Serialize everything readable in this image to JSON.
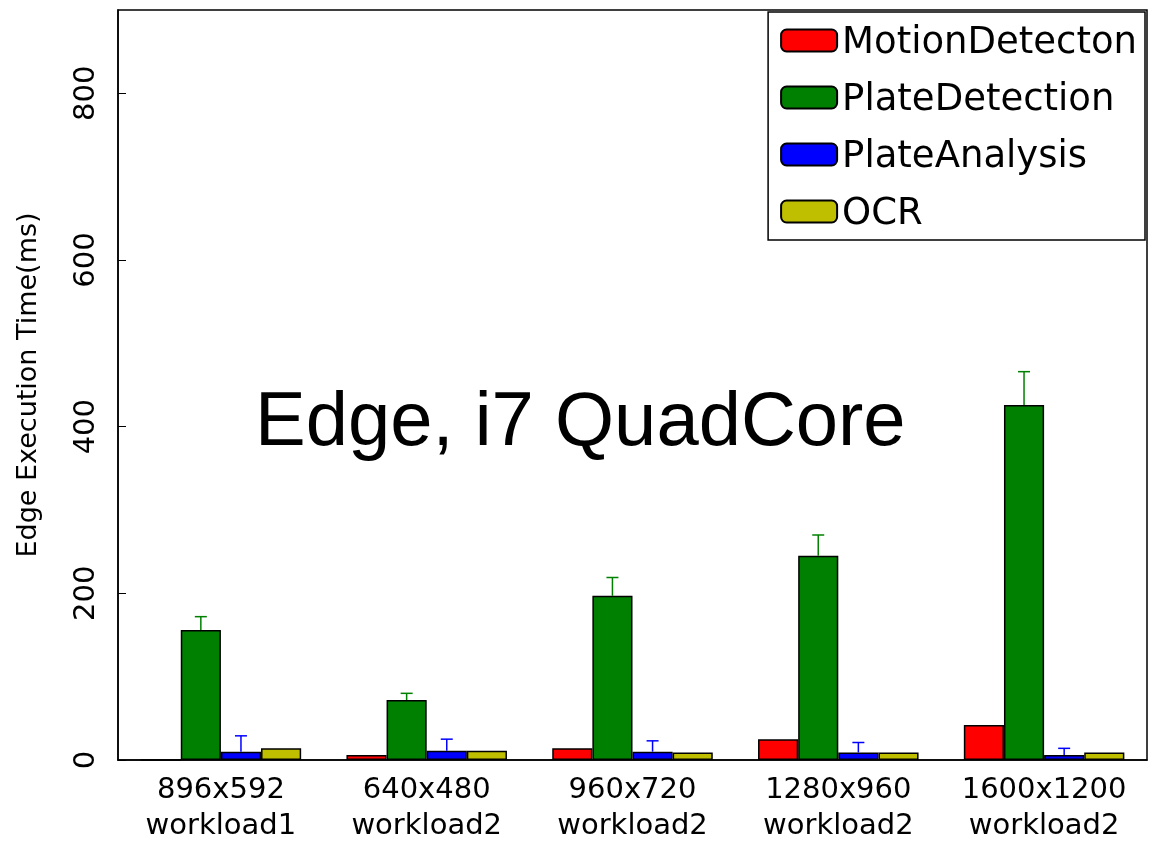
{
  "chart_data": {
    "type": "bar",
    "ylabel": "Edge Execution Time(ms)",
    "categories": [
      "896x592\nworkload1",
      "640x480\nworkload2",
      "960x720\nworkload2",
      "1280x960\nworkload2",
      "1600x1200\nworkload2"
    ],
    "series": [
      {
        "name": "MotionDetecton",
        "color": "#ff0000",
        "values": [
          0,
          6,
          14,
          25,
          42
        ]
      },
      {
        "name": "PlateDetection",
        "color": "#008000",
        "values": [
          156,
          72,
          197,
          245,
          426
        ],
        "errors": [
          [
            156,
            172
          ],
          [
            72,
            80
          ],
          [
            197,
            219
          ],
          [
            245,
            270
          ],
          [
            426,
            466
          ]
        ]
      },
      {
        "name": "PlateAnalysis",
        "color": "#0000ff",
        "values": [
          10,
          11,
          10,
          9,
          6
        ],
        "errors": [
          [
            10,
            29
          ],
          [
            11,
            25
          ],
          [
            10,
            23
          ],
          [
            9,
            21
          ],
          [
            6,
            14
          ]
        ]
      },
      {
        "name": "OCR",
        "color": "#bfbf00",
        "values": [
          14,
          11,
          9,
          9,
          9
        ]
      }
    ],
    "ylim": [
      0,
      900
    ],
    "yticks": [
      0,
      200,
      400,
      600,
      800
    ],
    "annotations": [
      "Edge, i7 QuadCore"
    ],
    "legend": "top right",
    "grid": false
  }
}
